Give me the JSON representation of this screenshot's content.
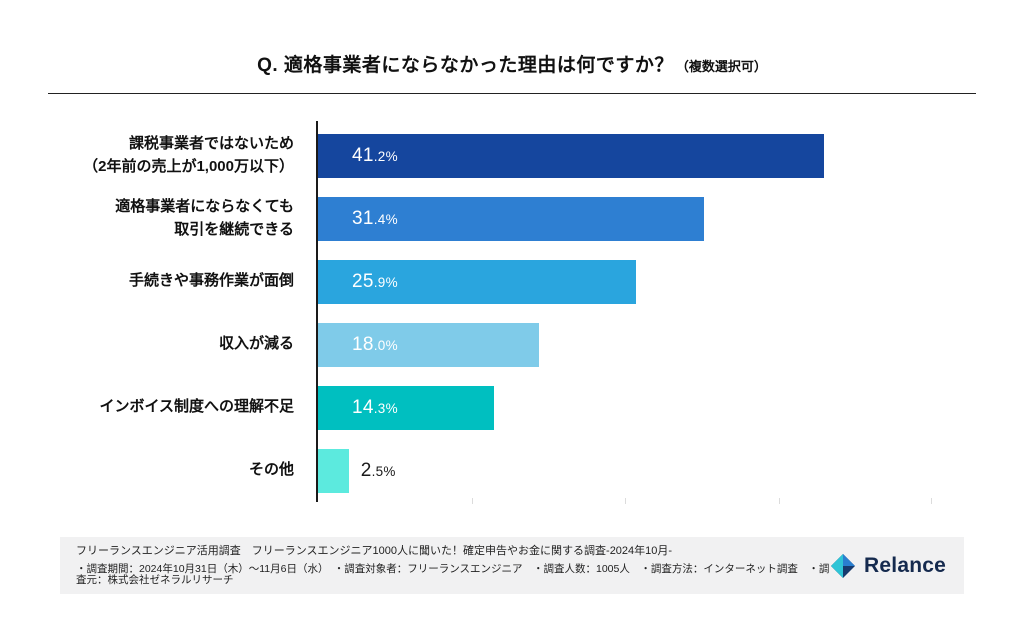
{
  "title": {
    "main": "Q. 適格事業者にならなかった理由は何ですか？",
    "note": "（複数選択可）"
  },
  "chart_data": {
    "type": "bar",
    "orientation": "horizontal",
    "title": "Q. 適格事業者にならなかった理由は何ですか？（複数選択可）",
    "xlabel": "",
    "ylabel": "",
    "xlim": [
      0,
      50
    ],
    "grid": false,
    "legend": "none",
    "categories": [
      "課税事業者ではないため（2年前の売上が1,000万以下）",
      "適格事業者にならなくても取引を継続できる",
      "手続きや事務作業が面倒",
      "収入が減る",
      "インボイス制度への理解不足",
      "その他"
    ],
    "values": [
      41.2,
      31.4,
      25.9,
      18.0,
      14.3,
      2.5
    ],
    "bars": [
      {
        "lines": [
          "課税事業者ではないため",
          "（2年前の売上が1,000万以下）"
        ],
        "value": 41.2,
        "label_int": "41",
        "label_frac": ".2%",
        "color": "#15469e",
        "label_inside": true
      },
      {
        "lines": [
          "適格事業者にならなくても",
          "取引を継続できる"
        ],
        "value": 31.4,
        "label_int": "31",
        "label_frac": ".4%",
        "color": "#2e7fd2",
        "label_inside": true
      },
      {
        "lines": [
          "手続きや事務作業が面倒"
        ],
        "value": 25.9,
        "label_int": "25",
        "label_frac": ".9%",
        "color": "#2aa5de",
        "label_inside": true
      },
      {
        "lines": [
          "収入が減る"
        ],
        "value": 18.0,
        "label_int": "18",
        "label_frac": ".0%",
        "color": "#7fcbe9",
        "label_inside": true
      },
      {
        "lines": [
          "インボイス制度への理解不足"
        ],
        "value": 14.3,
        "label_int": "14",
        "label_frac": ".3%",
        "color": "#00bfc0",
        "label_inside": true
      },
      {
        "lines": [
          "その他"
        ],
        "value": 2.5,
        "label_int": "2",
        "label_frac": ".5%",
        "color": "#5ceade",
        "label_inside": false
      }
    ]
  },
  "footer": {
    "line1": "フリーランスエンジニア活用調査　フリーランスエンジニア1000人に聞いた！確定申告やお金に関する調査-2024年10月-",
    "line2": "・調査期間：2024年10月31日（木）〜11月6日（水）　・調査対象者：フリーランスエンジニア　・調査人数：1005人　・調査方法：インターネット調査　・調査元：株式会社ゼネラルリサーチ"
  },
  "logo": {
    "name": "Relance",
    "colors": {
      "teal": "#2ec4d6",
      "navy": "#173a6d"
    }
  }
}
